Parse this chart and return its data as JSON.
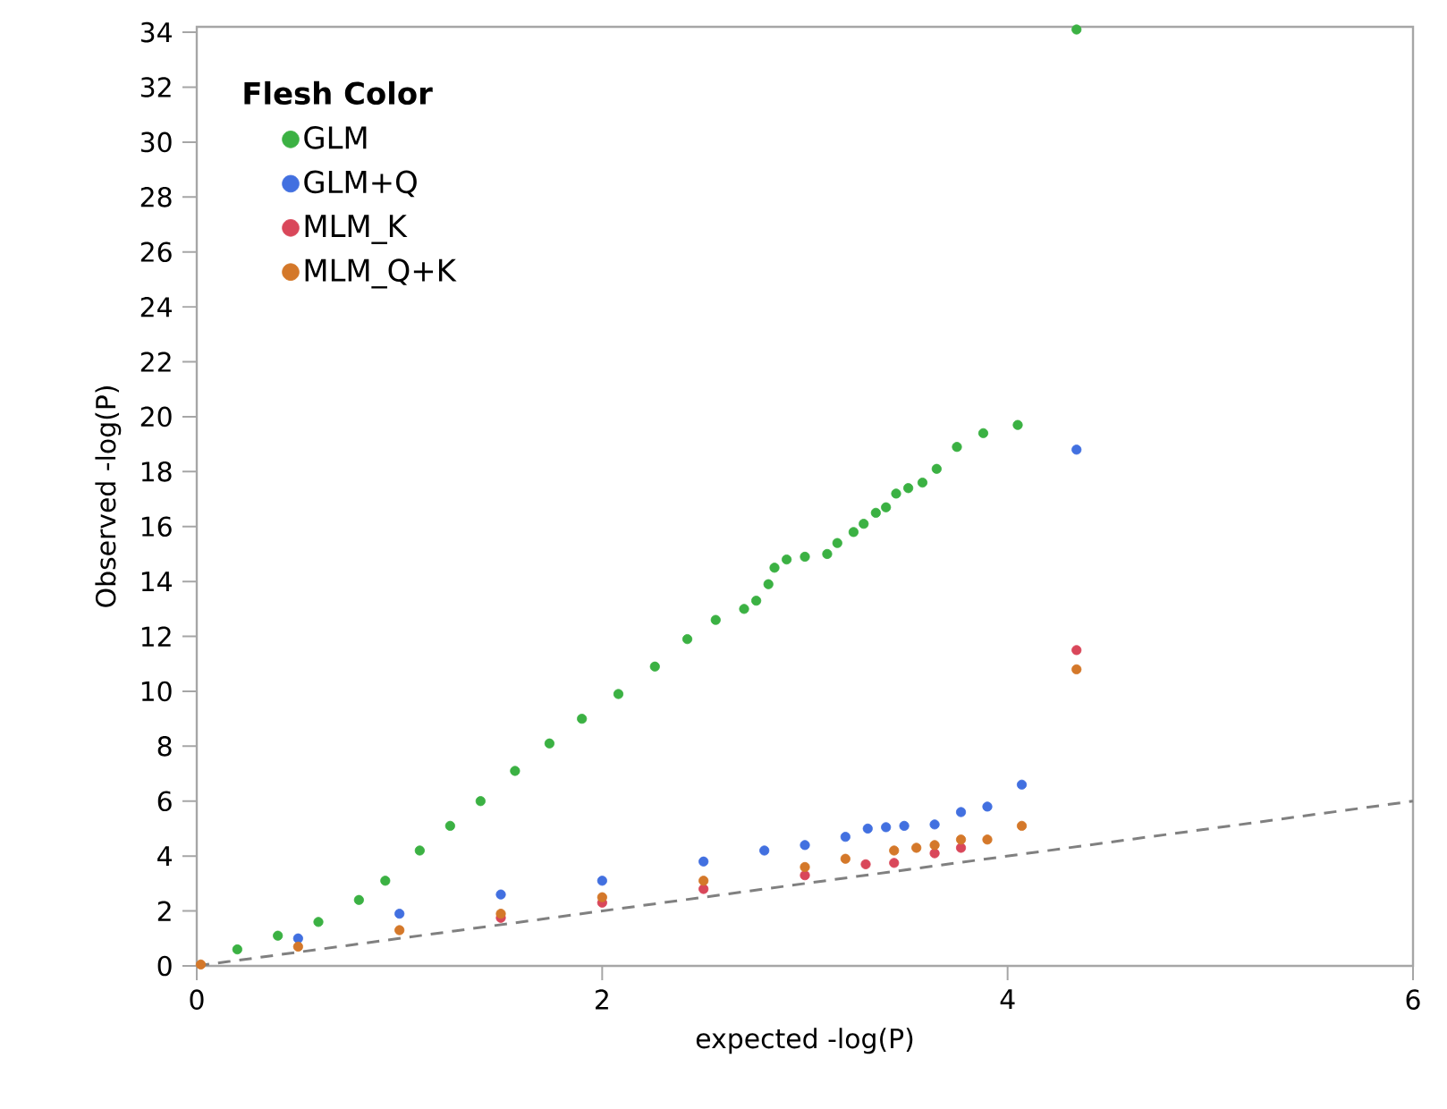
{
  "chart_data": {
    "type": "scatter",
    "xlabel": "expected -log(P)",
    "ylabel": "Observed -log(P)",
    "legend_title": "Flesh Color",
    "xlim": [
      0,
      6
    ],
    "ylim": [
      0,
      34.2
    ],
    "xticks": [
      0,
      2,
      4,
      6
    ],
    "yticks": [
      0,
      2,
      4,
      6,
      8,
      10,
      12,
      14,
      16,
      18,
      20,
      22,
      24,
      26,
      28,
      30,
      32,
      34
    ],
    "grid": false,
    "legend": "top left",
    "marker": "circle",
    "series": [
      {
        "name": "GLM",
        "color": "#3bb143",
        "x": [
          0.2,
          0.4,
          0.6,
          0.8,
          0.93,
          1.1,
          1.25,
          1.4,
          1.57,
          1.74,
          1.9,
          2.08,
          2.26,
          2.42,
          2.56,
          2.7,
          2.76,
          2.82,
          2.85,
          2.91,
          3.0,
          3.11,
          3.16,
          3.24,
          3.29,
          3.35,
          3.4,
          3.45,
          3.51,
          3.58,
          3.65,
          3.75,
          3.88,
          4.05,
          4.34
        ],
        "values": [
          0.6,
          1.1,
          1.6,
          2.4,
          3.1,
          4.2,
          5.1,
          6.0,
          7.1,
          8.1,
          9.0,
          9.9,
          10.9,
          11.9,
          12.6,
          13.0,
          13.3,
          13.9,
          14.5,
          14.8,
          14.9,
          15.0,
          15.4,
          15.8,
          16.1,
          16.5,
          16.7,
          17.2,
          17.4,
          17.6,
          18.1,
          18.9,
          19.4,
          19.7,
          34.1
        ]
      },
      {
        "name": "GLM+Q",
        "color": "#4270e0",
        "x": [
          0.5,
          1.0,
          1.5,
          2.0,
          2.5,
          2.8,
          3.0,
          3.2,
          3.31,
          3.4,
          3.49,
          3.64,
          3.77,
          3.9,
          4.07,
          4.34
        ],
        "values": [
          1.0,
          1.9,
          2.6,
          3.1,
          3.8,
          4.2,
          4.4,
          4.7,
          5.0,
          5.05,
          5.1,
          5.15,
          5.6,
          5.8,
          6.6,
          18.8
        ]
      },
      {
        "name": "MLM_K",
        "color": "#d9475a",
        "x": [
          1.5,
          2.0,
          2.5,
          3.0,
          3.3,
          3.44,
          3.64,
          3.77,
          4.34
        ],
        "values": [
          1.75,
          2.3,
          2.8,
          3.3,
          3.7,
          3.75,
          4.1,
          4.3,
          11.5
        ]
      },
      {
        "name": "MLM_Q+K",
        "color": "#d4782a",
        "x": [
          0.02,
          0.5,
          1.0,
          1.5,
          2.0,
          2.5,
          3.0,
          3.2,
          3.44,
          3.55,
          3.64,
          3.77,
          3.9,
          4.07,
          4.34
        ],
        "values": [
          0.05,
          0.7,
          1.3,
          1.9,
          2.5,
          3.1,
          3.6,
          3.9,
          4.2,
          4.3,
          4.4,
          4.6,
          4.6,
          5.1,
          10.8
        ]
      },
      {
        "type": "line",
        "color": "#808080",
        "line_style": "dashed",
        "marker": "none",
        "x": [
          0,
          6
        ],
        "values": [
          0,
          6
        ]
      }
    ]
  }
}
